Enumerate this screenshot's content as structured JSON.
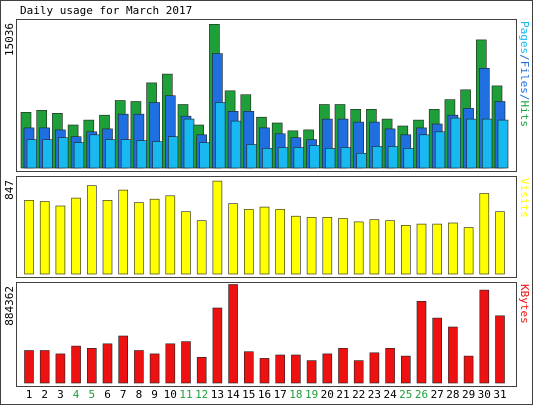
{
  "title": "Daily usage for March 2017",
  "colors": {
    "background": "#ffffff",
    "panel_bg": "#ffffff",
    "frame": "#404040",
    "hits": "#1f9f3a",
    "files": "#1f6fe0",
    "pages": "#18b8f0",
    "visits": "#ffff00",
    "kbytes": "#ee1111",
    "weekend": "#1f9f3a",
    "weekday": "#000000",
    "bar_outline": "#222222"
  },
  "chart_data": [
    {
      "type": "bar",
      "panel": "hits-files-pages",
      "title": "Daily usage for March 2017",
      "categories": [
        "1",
        "2",
        "3",
        "4",
        "5",
        "6",
        "7",
        "8",
        "9",
        "10",
        "11",
        "12",
        "13",
        "14",
        "15",
        "16",
        "17",
        "18",
        "19",
        "20",
        "21",
        "22",
        "23",
        "24",
        "25",
        "26",
        "27",
        "28",
        "29",
        "30",
        "31"
      ],
      "weekend_days": [
        "4",
        "5",
        "11",
        "12",
        "18",
        "19",
        "25",
        "26"
      ],
      "ymax_label": "15036",
      "ylim": [
        0,
        15036
      ],
      "legend_parts": [
        "Pages",
        "Files",
        "Hits"
      ],
      "legend_sep": "/",
      "series": [
        {
          "name": "Hits",
          "color_key": "hits",
          "values": [
            5700,
            5900,
            5600,
            4400,
            4900,
            5400,
            6900,
            6800,
            8700,
            9600,
            6500,
            4400,
            14700,
            7900,
            7500,
            5200,
            4600,
            3800,
            3900,
            6500,
            6500,
            6000,
            6000,
            5000,
            4300,
            4900,
            6000,
            7000,
            8000,
            13100,
            8400
          ]
        },
        {
          "name": "Files",
          "color_key": "files",
          "values": [
            4100,
            4100,
            3900,
            3200,
            3700,
            4000,
            5500,
            5500,
            6700,
            7400,
            5300,
            3400,
            11700,
            5800,
            5800,
            4100,
            3500,
            3100,
            2900,
            5000,
            5000,
            4700,
            4700,
            4000,
            3400,
            4100,
            4500,
            5400,
            6100,
            10200,
            6800
          ]
        },
        {
          "name": "Pages",
          "color_key": "pages",
          "values": [
            2900,
            2900,
            3100,
            2600,
            3400,
            2900,
            2900,
            2800,
            2700,
            3200,
            5000,
            2600,
            6700,
            4800,
            2400,
            2000,
            2100,
            2100,
            2300,
            2000,
            2100,
            1500,
            2200,
            2200,
            2000,
            3400,
            3700,
            5100,
            5000,
            5000,
            4900
          ]
        }
      ]
    },
    {
      "type": "bar",
      "panel": "visits",
      "categories": [
        "1",
        "2",
        "3",
        "4",
        "5",
        "6",
        "7",
        "8",
        "9",
        "10",
        "11",
        "12",
        "13",
        "14",
        "15",
        "16",
        "17",
        "18",
        "19",
        "20",
        "21",
        "22",
        "23",
        "24",
        "25",
        "26",
        "27",
        "28",
        "29",
        "30",
        "31"
      ],
      "ymax_label": "847",
      "ylim": [
        0,
        847
      ],
      "legend_parts": [
        "Visits"
      ],
      "series": [
        {
          "name": "Visits",
          "color_key": "visits",
          "values": [
            650,
            640,
            600,
            670,
            780,
            650,
            740,
            630,
            660,
            690,
            550,
            470,
            820,
            620,
            570,
            590,
            570,
            510,
            500,
            500,
            490,
            460,
            480,
            470,
            430,
            440,
            440,
            450,
            410,
            710,
            550
          ]
        }
      ]
    },
    {
      "type": "bar",
      "panel": "kbytes",
      "categories": [
        "1",
        "2",
        "3",
        "4",
        "5",
        "6",
        "7",
        "8",
        "9",
        "10",
        "11",
        "12",
        "13",
        "14",
        "15",
        "16",
        "17",
        "18",
        "19",
        "20",
        "21",
        "22",
        "23",
        "24",
        "25",
        "26",
        "27",
        "28",
        "29",
        "30",
        "31"
      ],
      "ymax_label": "884362",
      "ylim": [
        0,
        884362
      ],
      "legend_parts": [
        "KBytes"
      ],
      "series": [
        {
          "name": "KBytes",
          "color_key": "kbytes",
          "values": [
            290000,
            290000,
            260000,
            330000,
            310000,
            350000,
            420000,
            290000,
            260000,
            350000,
            370000,
            230000,
            670000,
            880000,
            280000,
            220000,
            250000,
            250000,
            200000,
            260000,
            310000,
            200000,
            270000,
            310000,
            240000,
            730000,
            580000,
            500000,
            240000,
            830000,
            600000
          ]
        }
      ]
    }
  ]
}
